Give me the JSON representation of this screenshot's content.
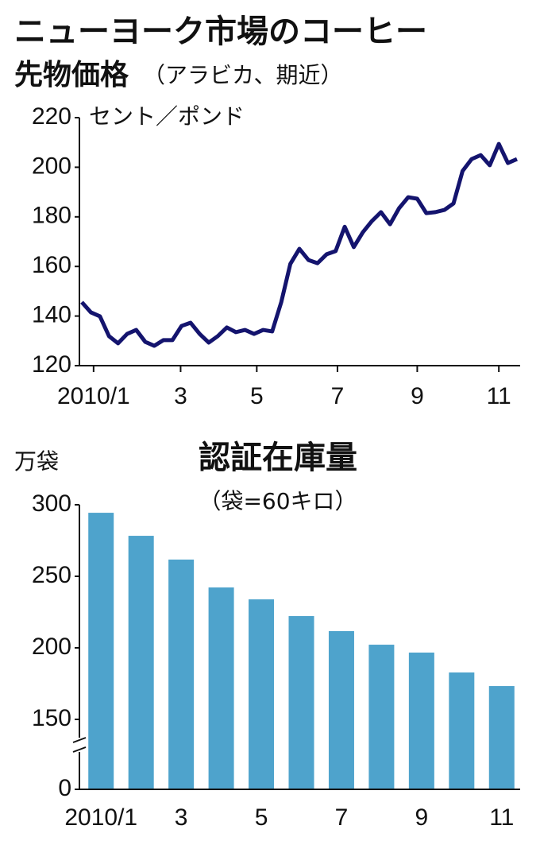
{
  "chart_data": [
    {
      "type": "line",
      "title": [
        "ニューヨーク市場のコーヒー",
        "先物価格"
      ],
      "subtitle": "（アラビカ、期近）",
      "y_label": "セント／ポンド",
      "color": "#14146e",
      "values": [
        145.6,
        141.5,
        139.9,
        131.9,
        129,
        132.8,
        134.4,
        129.6,
        128,
        130.3,
        130.3,
        136,
        137.3,
        132.8,
        129.3,
        131.9,
        135.4,
        133.5,
        134.4,
        132.8,
        134.4,
        133.8,
        145.6,
        161,
        167.1,
        162.6,
        161.3,
        164.9,
        166.2,
        176,
        167.8,
        173.8,
        178.3,
        181.9,
        177,
        183.5,
        187.9,
        187.3,
        181.5,
        181.9,
        182.8,
        185.4,
        198.5,
        203.3,
        204.9,
        200.8,
        209.4,
        201.7,
        203.3
      ],
      "xlim": [
        0,
        48
      ],
      "xticks": [
        {
          "value": 1.3,
          "label": "2010/1"
        },
        {
          "value": 10.9,
          "label": "3"
        },
        {
          "value": 19.3,
          "label": "5"
        },
        {
          "value": 28.2,
          "label": "7"
        },
        {
          "value": 37,
          "label": "9"
        },
        {
          "value": 46,
          "label": "11"
        }
      ],
      "ylim": [
        120,
        220
      ],
      "yticks": [
        120,
        140,
        160,
        180,
        200,
        220
      ]
    },
    {
      "type": "bar",
      "title": "認証在庫量",
      "subtitle": "（袋=60キロ）",
      "y_label": "万袋",
      "color": "#4ea3cc",
      "categories": [
        "2010/1",
        null,
        "3",
        null,
        "5",
        null,
        "7",
        null,
        "9",
        null,
        "11"
      ],
      "values": [
        294.4,
        278.3,
        261.7,
        242.2,
        233.9,
        222.2,
        211.7,
        202.2,
        196.7,
        182.8,
        173.3
      ],
      "ylim": [
        0,
        300
      ],
      "yticks": [
        0,
        150,
        200,
        250,
        300
      ],
      "axis_break": [
        0,
        150
      ]
    }
  ]
}
